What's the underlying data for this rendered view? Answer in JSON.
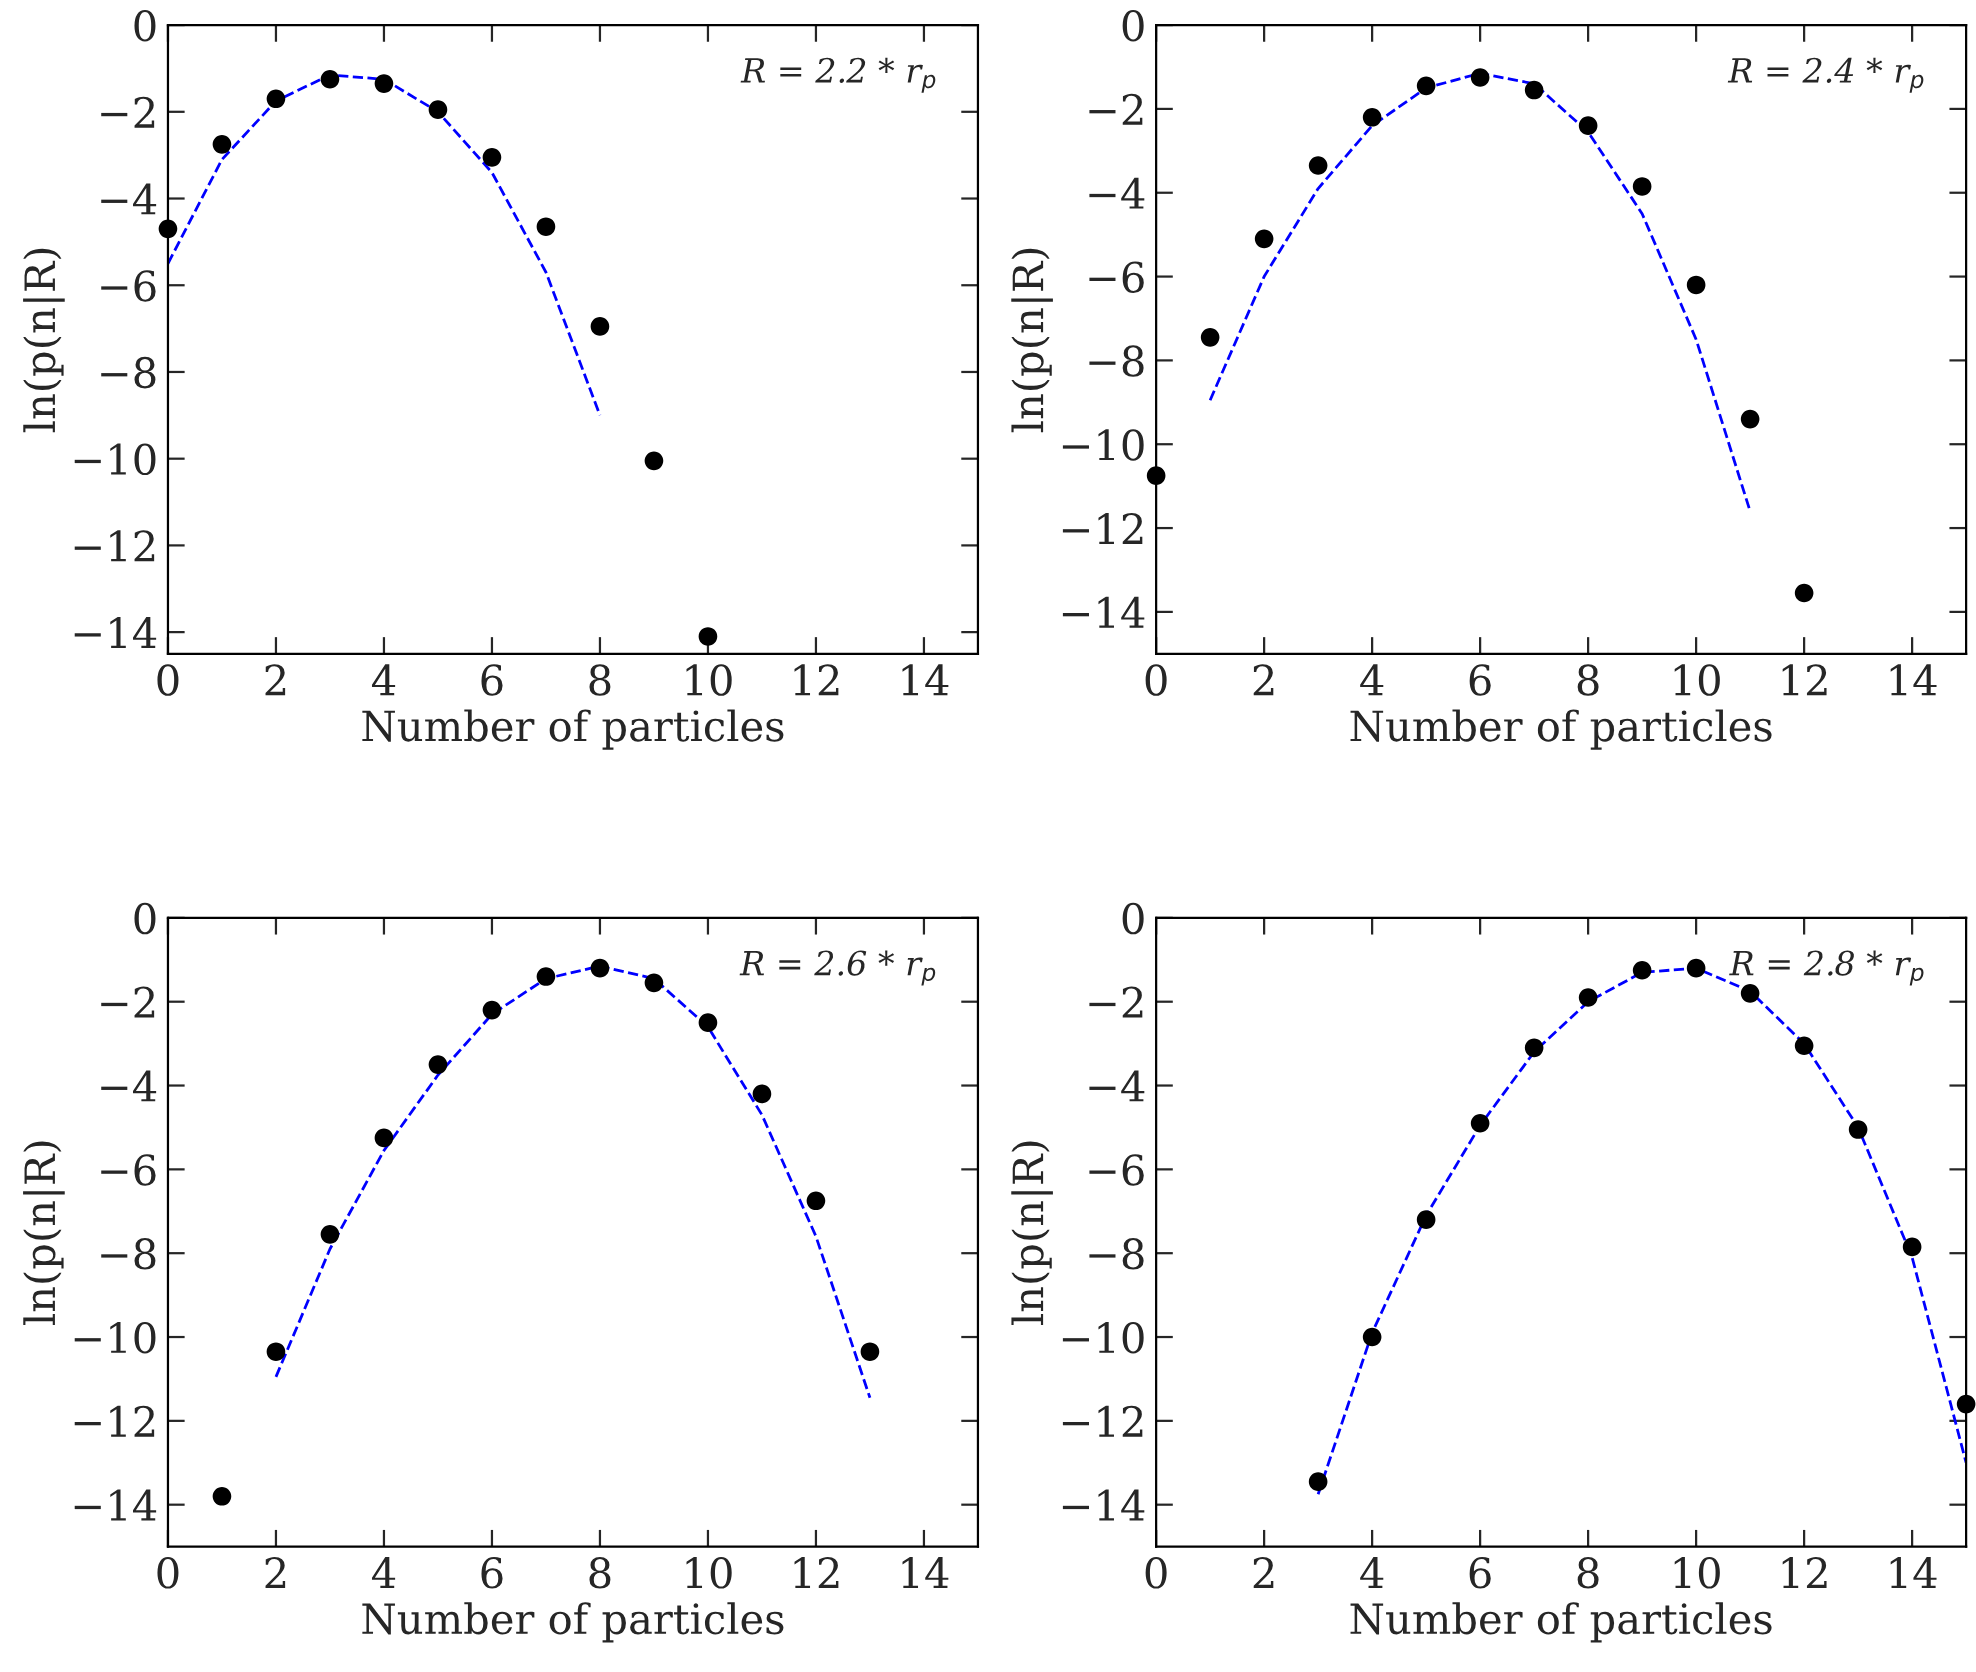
{
  "chart_data": [
    {
      "type": "scatter",
      "xlabel": "Number of particles",
      "ylabel": "ln(p(n|R)",
      "annotations": [
        "R = 2.2 * r$_{p}$"
      ],
      "xlim": [
        0,
        15
      ],
      "ylim": [
        -14.5,
        0
      ],
      "xticks": [
        0,
        2,
        4,
        6,
        8,
        10,
        12,
        14
      ],
      "yticks": [
        0,
        {
          "value": -2,
          "label": "−2"
        },
        {
          "value": -4,
          "label": "−4"
        },
        {
          "value": -6,
          "label": "−6"
        },
        {
          "value": -8,
          "label": "−8"
        },
        {
          "value": -10,
          "label": "−10"
        },
        {
          "value": -12,
          "label": "−12"
        },
        {
          "value": -14,
          "label": "−14"
        }
      ],
      "grid": false,
      "legend": false,
      "series": [
        {
          "color": "#000000",
          "marker": "circle",
          "x": [
            0,
            1,
            2,
            3,
            4,
            5,
            6,
            7,
            8,
            9,
            10
          ],
          "values": [
            -4.7,
            -2.75,
            -1.7,
            -1.25,
            -1.35,
            -1.95,
            -3.05,
            -4.65,
            -6.95,
            -10.05,
            -14.1
          ]
        },
        {
          "type": "line",
          "color": "#0000ff",
          "line_style": "dashed",
          "marker": "none",
          "x": [
            0,
            1,
            2,
            3,
            4,
            5,
            6,
            7,
            8
          ],
          "values": [
            -5.5,
            -3.1,
            -1.75,
            -1.15,
            -1.25,
            -2.0,
            -3.4,
            -5.7,
            -9.0
          ]
        }
      ]
    },
    {
      "type": "scatter",
      "xlabel": "Number of particles",
      "ylabel": "ln(p(n|R)",
      "annotations": [
        "R = 2.4 * r$_{p}$"
      ],
      "xlim": [
        0,
        15
      ],
      "ylim": [
        -15,
        0
      ],
      "xticks": [
        0,
        2,
        4,
        6,
        8,
        10,
        12,
        14
      ],
      "yticks": [
        0,
        {
          "value": -2,
          "label": "−2"
        },
        {
          "value": -4,
          "label": "−4"
        },
        {
          "value": -6,
          "label": "−6"
        },
        {
          "value": -8,
          "label": "−8"
        },
        {
          "value": -10,
          "label": "−10"
        },
        {
          "value": -12,
          "label": "−12"
        },
        {
          "value": -14,
          "label": "−14"
        }
      ],
      "grid": false,
      "legend": false,
      "series": [
        {
          "color": "#000000",
          "marker": "circle",
          "x": [
            0,
            1,
            2,
            3,
            4,
            5,
            6,
            7,
            8,
            9,
            10,
            11,
            12
          ],
          "values": [
            -10.75,
            -7.45,
            -5.1,
            -3.35,
            -2.2,
            -1.45,
            -1.25,
            -1.55,
            -2.4,
            -3.85,
            -6.2,
            -9.4,
            -13.55
          ]
        },
        {
          "type": "line",
          "color": "#0000ff",
          "line_style": "dashed",
          "marker": "none",
          "x": [
            1,
            2,
            3,
            4,
            5,
            6,
            7,
            8,
            9,
            10,
            11
          ],
          "values": [
            -8.95,
            -6.0,
            -3.9,
            -2.4,
            -1.5,
            -1.15,
            -1.4,
            -2.55,
            -4.5,
            -7.5,
            -11.6
          ]
        }
      ]
    },
    {
      "type": "scatter",
      "xlabel": "Number of particles",
      "ylabel": "ln(p(n|R)",
      "annotations": [
        "R = 2.6 * r$_{p}$"
      ],
      "xlim": [
        0,
        15
      ],
      "ylim": [
        -15,
        0
      ],
      "xticks": [
        0,
        2,
        4,
        6,
        8,
        10,
        12,
        14
      ],
      "yticks": [
        0,
        {
          "value": -2,
          "label": "−2"
        },
        {
          "value": -4,
          "label": "−4"
        },
        {
          "value": -6,
          "label": "−6"
        },
        {
          "value": -8,
          "label": "−8"
        },
        {
          "value": -10,
          "label": "−10"
        },
        {
          "value": -12,
          "label": "−12"
        },
        {
          "value": -14,
          "label": "−14"
        }
      ],
      "grid": false,
      "legend": false,
      "series": [
        {
          "color": "#000000",
          "marker": "circle",
          "x": [
            1,
            2,
            3,
            4,
            5,
            6,
            7,
            8,
            9,
            10,
            11,
            12,
            13
          ],
          "values": [
            -13.8,
            -10.35,
            -7.55,
            -5.25,
            -3.5,
            -2.2,
            -1.4,
            -1.2,
            -1.55,
            -2.5,
            -4.2,
            -6.75,
            -10.35
          ]
        },
        {
          "type": "line",
          "color": "#0000ff",
          "line_style": "dashed",
          "marker": "none",
          "x": [
            2,
            3,
            4,
            5,
            6,
            7,
            8,
            9,
            10,
            11,
            12,
            13
          ],
          "values": [
            -10.95,
            -7.9,
            -5.55,
            -3.75,
            -2.3,
            -1.45,
            -1.15,
            -1.45,
            -2.6,
            -4.7,
            -7.6,
            -11.45
          ]
        }
      ]
    },
    {
      "type": "scatter",
      "xlabel": "Number of particles",
      "ylabel": "ln(p(n|R)",
      "annotations": [
        "R = 2.8 * r$_{p}$"
      ],
      "xlim": [
        0,
        15
      ],
      "ylim": [
        -15,
        0
      ],
      "xticks": [
        0,
        2,
        4,
        6,
        8,
        10,
        12,
        14
      ],
      "yticks": [
        0,
        {
          "value": -2,
          "label": "−2"
        },
        {
          "value": -4,
          "label": "−4"
        },
        {
          "value": -6,
          "label": "−6"
        },
        {
          "value": -8,
          "label": "−8"
        },
        {
          "value": -10,
          "label": "−10"
        },
        {
          "value": -12,
          "label": "−12"
        },
        {
          "value": -14,
          "label": "−14"
        }
      ],
      "grid": false,
      "legend": false,
      "series": [
        {
          "color": "#000000",
          "marker": "circle",
          "x": [
            3,
            4,
            5,
            6,
            7,
            8,
            9,
            10,
            11,
            12,
            13,
            14,
            15
          ],
          "values": [
            -13.45,
            -10.0,
            -7.2,
            -4.9,
            -3.1,
            -1.9,
            -1.25,
            -1.2,
            -1.8,
            -3.05,
            -5.05,
            -7.85,
            -11.6
          ]
        },
        {
          "type": "line",
          "color": "#0000ff",
          "line_style": "dashed",
          "marker": "none",
          "x": [
            3,
            4,
            5,
            6,
            7,
            8,
            9,
            10,
            11,
            12,
            13,
            14,
            15
          ],
          "values": [
            -13.75,
            -9.9,
            -7.1,
            -4.95,
            -3.2,
            -2.0,
            -1.3,
            -1.2,
            -1.75,
            -3.0,
            -5.0,
            -8.1,
            -13.0
          ]
        }
      ]
    }
  ]
}
